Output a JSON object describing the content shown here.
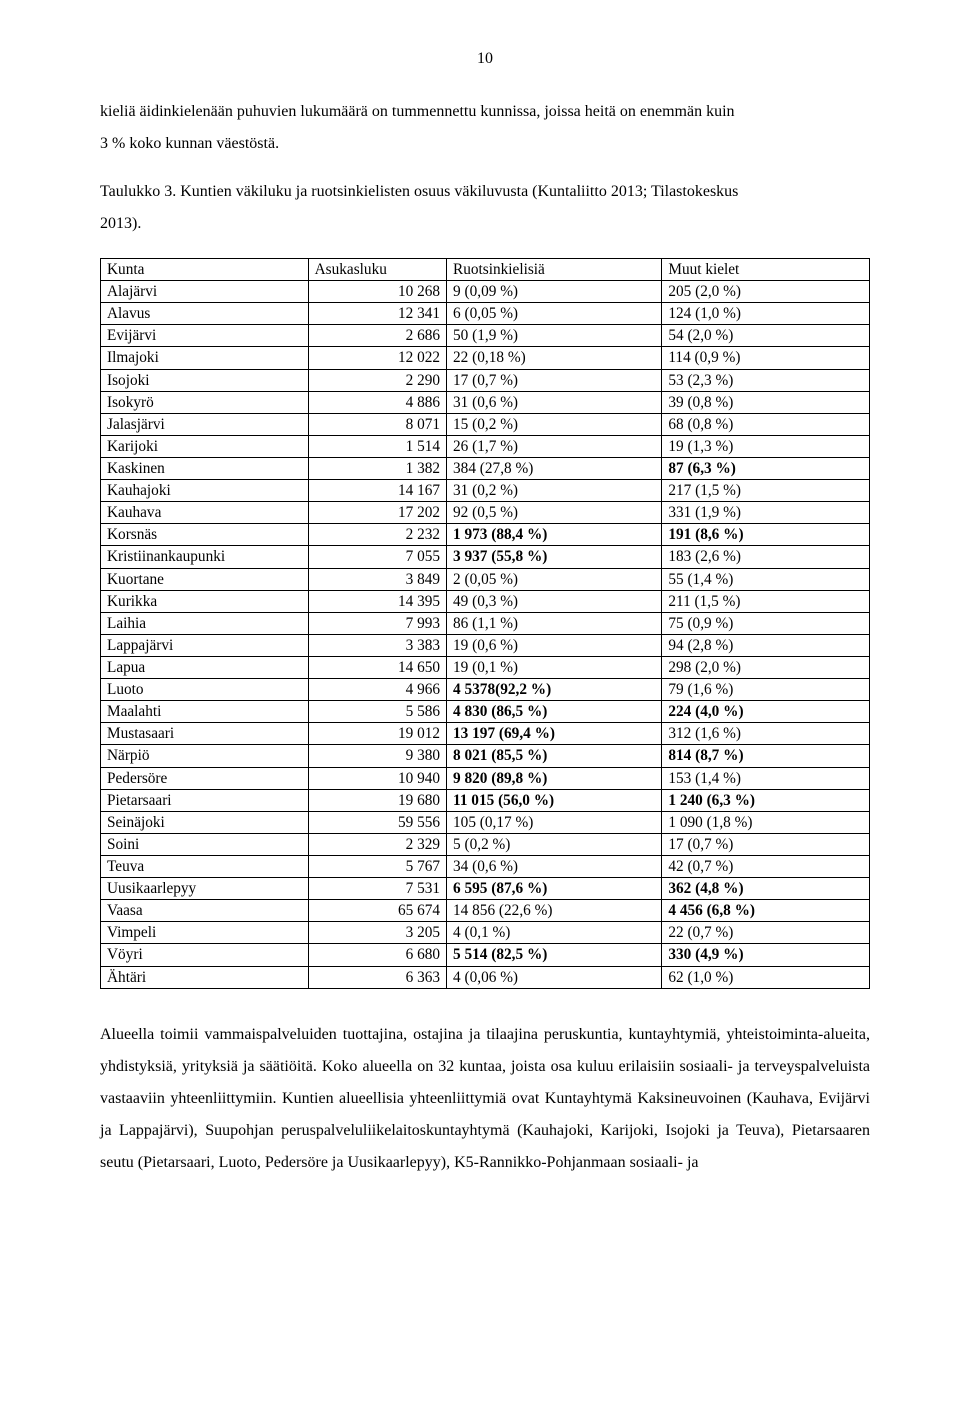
{
  "pageNumber": "10",
  "intro": {
    "p1a": "kieliä äidinkielenään puhuvien lukumäärä on tummennettu kunnissa, joissa heitä on enemmän kuin",
    "p1b": "3 % koko kunnan väestöstä.",
    "p2a": "Taulukko 3. Kuntien väkiluku ja ruotsinkielisten osuus väkiluvusta (Kuntaliitto 2013; Tilastokeskus",
    "p2b": "2013)."
  },
  "table": {
    "headers": [
      "Kunta",
      "Asukasluku",
      "Ruotsinkielisiä",
      "Muut kielet"
    ],
    "rows": [
      {
        "c0": "Alajärvi",
        "c1": "10 268",
        "c2": "9 (0,09 %)",
        "c3": "205 (2,0 %)",
        "b2": false,
        "b3": false
      },
      {
        "c0": "Alavus",
        "c1": "12 341",
        "c2": "6 (0,05 %)",
        "c3": "124 (1,0 %)",
        "b2": false,
        "b3": false
      },
      {
        "c0": "Evijärvi",
        "c1": "2 686",
        "c2": "50 (1,9 %)",
        "c3": "54 (2,0 %)",
        "b2": false,
        "b3": false
      },
      {
        "c0": "Ilmajoki",
        "c1": "12 022",
        "c2": "22 (0,18 %)",
        "c3": "114 (0,9 %)",
        "b2": false,
        "b3": false
      },
      {
        "c0": "Isojoki",
        "c1": "2 290",
        "c2": "17 (0,7 %)",
        "c3": "53 (2,3 %)",
        "b2": false,
        "b3": false
      },
      {
        "c0": "Isokyrö",
        "c1": "4 886",
        "c2": "31 (0,6 %)",
        "c3": "39 (0,8 %)",
        "b2": false,
        "b3": false
      },
      {
        "c0": "Jalasjärvi",
        "c1": "8 071",
        "c2": "15 (0,2 %)",
        "c3": "68 (0,8 %)",
        "b2": false,
        "b3": false
      },
      {
        "c0": "Karijoki",
        "c1": "1 514",
        "c2": "26 (1,7 %)",
        "c3": "19 (1,3 %)",
        "b2": false,
        "b3": false
      },
      {
        "c0": "Kaskinen",
        "c1": "1 382",
        "c2": "384 (27,8 %)",
        "c3": "87 (6,3 %)",
        "b2": false,
        "b3": true
      },
      {
        "c0": "Kauhajoki",
        "c1": "14 167",
        "c2": "31 (0,2 %)",
        "c3": "217 (1,5 %)",
        "b2": false,
        "b3": false
      },
      {
        "c0": "Kauhava",
        "c1": "17 202",
        "c2": "92 (0,5 %)",
        "c3": "331 (1,9 %)",
        "b2": false,
        "b3": false
      },
      {
        "c0": "Korsnäs",
        "c1": "2 232",
        "c2": "1 973 (88,4 %)",
        "c3": "191 (8,6 %)",
        "b2": true,
        "b3": true
      },
      {
        "c0": "Kristiinankaupunki",
        "c1": "7 055",
        "c2": "3 937 (55,8 %)",
        "c3": "183 (2,6 %)",
        "b2": true,
        "b3": false
      },
      {
        "c0": "Kuortane",
        "c1": "3 849",
        "c2": "2 (0,05 %)",
        "c3": "55 (1,4 %)",
        "b2": false,
        "b3": false
      },
      {
        "c0": "Kurikka",
        "c1": "14 395",
        "c2": "49 (0,3 %)",
        "c3": "211 (1,5 %)",
        "b2": false,
        "b3": false
      },
      {
        "c0": "Laihia",
        "c1": "7 993",
        "c2": "86 (1,1 %)",
        "c3": "75 (0,9 %)",
        "b2": false,
        "b3": false
      },
      {
        "c0": "Lappajärvi",
        "c1": "3 383",
        "c2": "19 (0,6 %)",
        "c3": "94 (2,8 %)",
        "b2": false,
        "b3": false
      },
      {
        "c0": "Lapua",
        "c1": "14 650",
        "c2": "19 (0,1 %)",
        "c3": "298 (2,0 %)",
        "b2": false,
        "b3": false
      },
      {
        "c0": "Luoto",
        "c1": "4 966",
        "c2": "4 5378(92,2 %)",
        "c3": "79 (1,6 %)",
        "b2": true,
        "b3": false
      },
      {
        "c0": "Maalahti",
        "c1": "5 586",
        "c2": "4 830 (86,5 %)",
        "c3": "224 (4,0 %)",
        "b2": true,
        "b3": true
      },
      {
        "c0": "Mustasaari",
        "c1": "19 012",
        "c2": "13 197 (69,4 %)",
        "c3": "312 (1,6 %)",
        "b2": true,
        "b3": false
      },
      {
        "c0": "Närpiö",
        "c1": "9 380",
        "c2": "8 021 (85,5 %)",
        "c3": "814 (8,7 %)",
        "b2": true,
        "b3": true
      },
      {
        "c0": "Pedersöre",
        "c1": "10 940",
        "c2": "9 820 (89,8 %)",
        "c3": "153 (1,4 %)",
        "b2": true,
        "b3": false
      },
      {
        "c0": "Pietarsaari",
        "c1": "19 680",
        "c2": "11 015 (56,0 %)",
        "c3": "1 240 (6,3 %)",
        "b2": true,
        "b3": true
      },
      {
        "c0": "Seinäjoki",
        "c1": "59 556",
        "c2": "105 (0,17 %)",
        "c3": "1 090 (1,8 %)",
        "b2": false,
        "b3": false
      },
      {
        "c0": "Soini",
        "c1": "2 329",
        "c2": "5 (0,2 %)",
        "c3": "17 (0,7 %)",
        "b2": false,
        "b3": false
      },
      {
        "c0": "Teuva",
        "c1": "5 767",
        "c2": "34 (0,6 %)",
        "c3": "42 (0,7 %)",
        "b2": false,
        "b3": false
      },
      {
        "c0": "Uusikaarlepyy",
        "c1": "7 531",
        "c2": "6 595 (87,6 %)",
        "c3": "362 (4,8 %)",
        "b2": true,
        "b3": true
      },
      {
        "c0": "Vaasa",
        "c1": "65 674",
        "c2": "14 856 (22,6 %)",
        "c3": "4 456 (6,8 %)",
        "b2": false,
        "b3": true
      },
      {
        "c0": "Vimpeli",
        "c1": "3 205",
        "c2": "4 (0,1 %)",
        "c3": "22 (0,7 %)",
        "b2": false,
        "b3": false
      },
      {
        "c0": "Vöyri",
        "c1": "6 680",
        "c2": "5 514 (82,5 %)",
        "c3": "330 (4,9 %)",
        "b2": true,
        "b3": true
      },
      {
        "c0": "Ähtäri",
        "c1": "6 363",
        "c2": "4 (0,06 %)",
        "c3": "62 (1,0 %)",
        "b2": false,
        "b3": false
      }
    ]
  },
  "outro": {
    "p": "Alueella toimii vammaispalveluiden tuottajina, ostajina ja tilaajina peruskuntia, kuntayhtymiä, yhteistoiminta-alueita, yhdistyksiä, yrityksiä ja säätiöitä. Koko alueella on 32 kuntaa, joista osa kuluu erilaisiin sosiaali- ja terveyspalveluista vastaaviin yhteenliittymiin. Kuntien alueellisia yhteenliittymiä ovat Kuntayhtymä Kaksineuvoinen (Kauhava, Evijärvi ja Lappajärvi), Suupohjan peruspalveluliikelaitoskuntayhtymä (Kauhajoki, Karijoki, Isojoki ja Teuva), Pietarsaaren seutu (Pietarsaari, Luoto, Pedersöre ja Uusikaarlepyy), K5-Rannikko-Pohjanmaan sosiaali- ja"
  }
}
